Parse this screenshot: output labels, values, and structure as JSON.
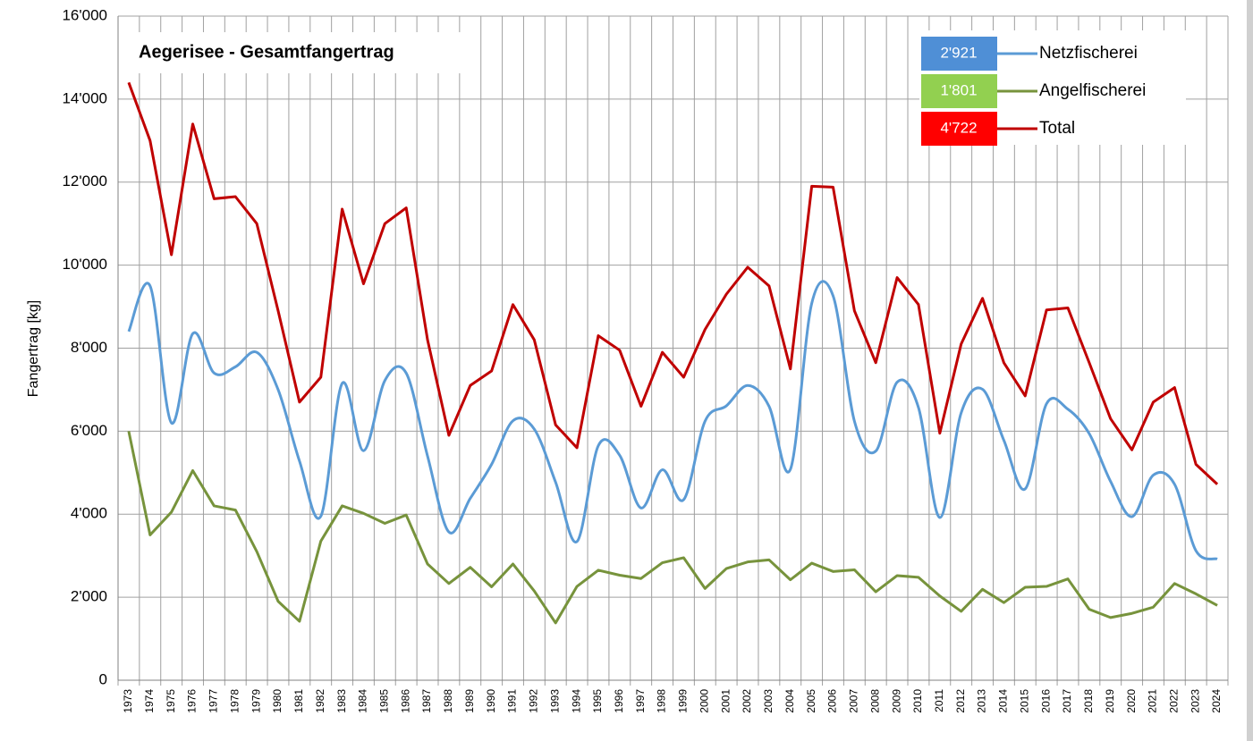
{
  "chart_data": {
    "type": "line",
    "title": "Aegerisee - Gesamtfangertrag",
    "y_label": "Fangertrag [kg]",
    "categories": [
      "1973",
      "1974",
      "1975",
      "1976",
      "1977",
      "1978",
      "1979",
      "1980",
      "1981",
      "1982",
      "1983",
      "1984",
      "1985",
      "1986",
      "1987",
      "1988",
      "1989",
      "1990",
      "1991",
      "1992",
      "1993",
      "1994",
      "1995",
      "1996",
      "1997",
      "1998",
      "1999",
      "2000",
      "2001",
      "2002",
      "2003",
      "2004",
      "2005",
      "2006",
      "2007",
      "2008",
      "2009",
      "2010",
      "2011",
      "2012",
      "2013",
      "2014",
      "2015",
      "2016",
      "2017",
      "2018",
      "2019",
      "2020",
      "2021",
      "2022",
      "2023",
      "2024"
    ],
    "series": [
      {
        "name": "Netzfischerei",
        "color": "#5b9bd5",
        "label_color": "#4f8fd6",
        "smooth": true,
        "last_label": "2'921",
        "values": [
          8400,
          9500,
          6200,
          8350,
          7400,
          7550,
          7900,
          7000,
          5280,
          3950,
          7150,
          5530,
          7220,
          7400,
          5400,
          3570,
          4380,
          5200,
          6250,
          6050,
          4770,
          3340,
          5650,
          5420,
          4150,
          5070,
          4350,
          6240,
          6610,
          7100,
          6600,
          5080,
          9080,
          9260,
          6240,
          5520,
          7180,
          6570,
          3920,
          6440,
          7010,
          5780,
          4610,
          6660,
          6530,
          5940,
          4790,
          3940,
          4940,
          4720,
          3120,
          2921
        ]
      },
      {
        "name": "Angelfischerei",
        "color": "#77933c",
        "label_color": "#92d050",
        "smooth": false,
        "last_label": "1'801",
        "values": [
          6000,
          3500,
          4050,
          5050,
          4200,
          4100,
          3100,
          1900,
          1420,
          3350,
          4200,
          4020,
          3780,
          3980,
          2800,
          2330,
          2720,
          2250,
          2800,
          2150,
          1380,
          2260,
          2650,
          2530,
          2450,
          2830,
          2950,
          2210,
          2690,
          2850,
          2900,
          2420,
          2820,
          2620,
          2660,
          2130,
          2520,
          2480,
          2030,
          1660,
          2190,
          1870,
          2240,
          2260,
          2440,
          1710,
          1510,
          1610,
          1760,
          2330,
          2080,
          1801
        ]
      },
      {
        "name": "Total",
        "color": "#c00000",
        "label_color": "#ff0000",
        "smooth": false,
        "last_label": "4'722",
        "values": [
          14400,
          13000,
          10250,
          13400,
          11600,
          11650,
          11000,
          8900,
          6700,
          7300,
          11350,
          9550,
          11000,
          11380,
          8200,
          5900,
          7100,
          7450,
          9050,
          8200,
          6150,
          5600,
          8300,
          7950,
          6600,
          7900,
          7300,
          8450,
          9300,
          9950,
          9500,
          7500,
          11900,
          11880,
          8900,
          7650,
          9700,
          9050,
          5950,
          8100,
          9200,
          7650,
          6850,
          8920,
          8970,
          7650,
          6300,
          5550,
          6700,
          7050,
          5200,
          4722
        ]
      }
    ],
    "ylim": [
      0,
      16000
    ],
    "yticks": [
      0,
      {
        "value": 2000,
        "label": "2'000"
      },
      {
        "value": 4000,
        "label": "4'000"
      },
      {
        "value": 6000,
        "label": "6'000"
      },
      {
        "value": 8000,
        "label": "8'000"
      },
      {
        "value": 10000,
        "label": "10'000"
      },
      {
        "value": 12000,
        "label": "12'000"
      },
      {
        "value": 14000,
        "label": "14'000"
      },
      {
        "value": 16000,
        "label": "16'000"
      }
    ],
    "grid": true
  }
}
